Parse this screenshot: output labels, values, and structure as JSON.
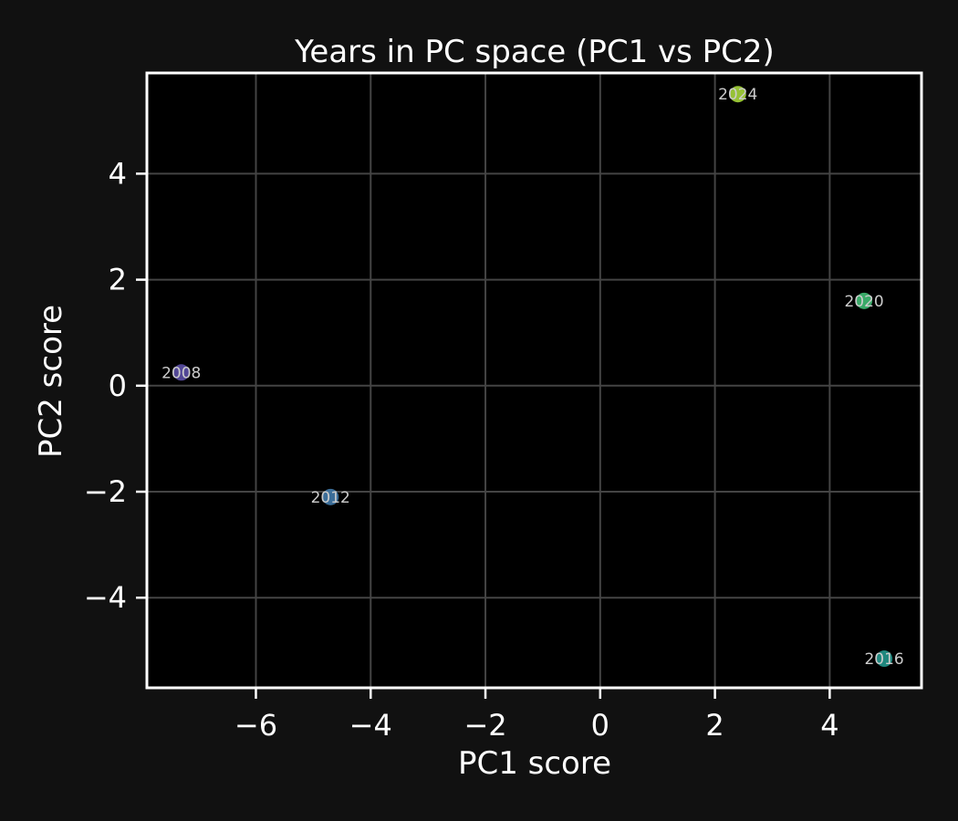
{
  "chart_data": {
    "type": "scatter",
    "title": "Years in PC space (PC1 vs PC2)",
    "xlabel": "PC1 score",
    "ylabel": "PC2 score",
    "xlim": [
      -7.9,
      5.6
    ],
    "ylim": [
      -5.7,
      5.9
    ],
    "xticks": [
      -6,
      -4,
      -2,
      0,
      2,
      4
    ],
    "yticks": [
      -4,
      -2,
      0,
      2,
      4
    ],
    "grid": true,
    "colors": {
      "background": "#111111",
      "plot_background": "#000000",
      "grid": "#444444"
    },
    "points": [
      {
        "label": "2008",
        "x": -7.3,
        "y": 0.25,
        "color": "#5b4fa6"
      },
      {
        "label": "2012",
        "x": -4.7,
        "y": -2.1,
        "color": "#4179a8"
      },
      {
        "label": "2016",
        "x": 4.95,
        "y": -5.15,
        "color": "#22968c"
      },
      {
        "label": "2020",
        "x": 4.6,
        "y": 1.6,
        "color": "#3fbd73"
      },
      {
        "label": "2024",
        "x": 2.4,
        "y": 5.5,
        "color": "#a6d63c"
      }
    ]
  }
}
